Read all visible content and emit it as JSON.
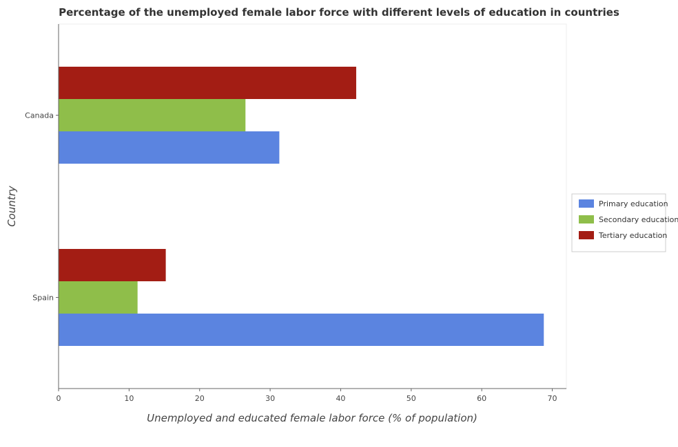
{
  "chart_data": {
    "type": "bar",
    "orientation": "horizontal",
    "title": "Percentage of the unemployed female labor force with different levels of education in countries",
    "xlabel": "Unemployed and educated female labor force (% of population)",
    "ylabel": "Country",
    "categories": [
      "Canada",
      "Spain"
    ],
    "series": [
      {
        "name": "Primary education",
        "color": "#5b84e0",
        "values": [
          31.3,
          68.8
        ]
      },
      {
        "name": "Secondary education",
        "color": "#8fbe4a",
        "values": [
          26.5,
          11.2
        ]
      },
      {
        "name": "Tertiary education",
        "color": "#a31d14",
        "values": [
          42.2,
          15.2
        ]
      }
    ],
    "xlim": [
      0,
      72
    ],
    "xticks": [
      0,
      10,
      20,
      30,
      40,
      50,
      60,
      70
    ],
    "grid": false,
    "legend": "right"
  }
}
